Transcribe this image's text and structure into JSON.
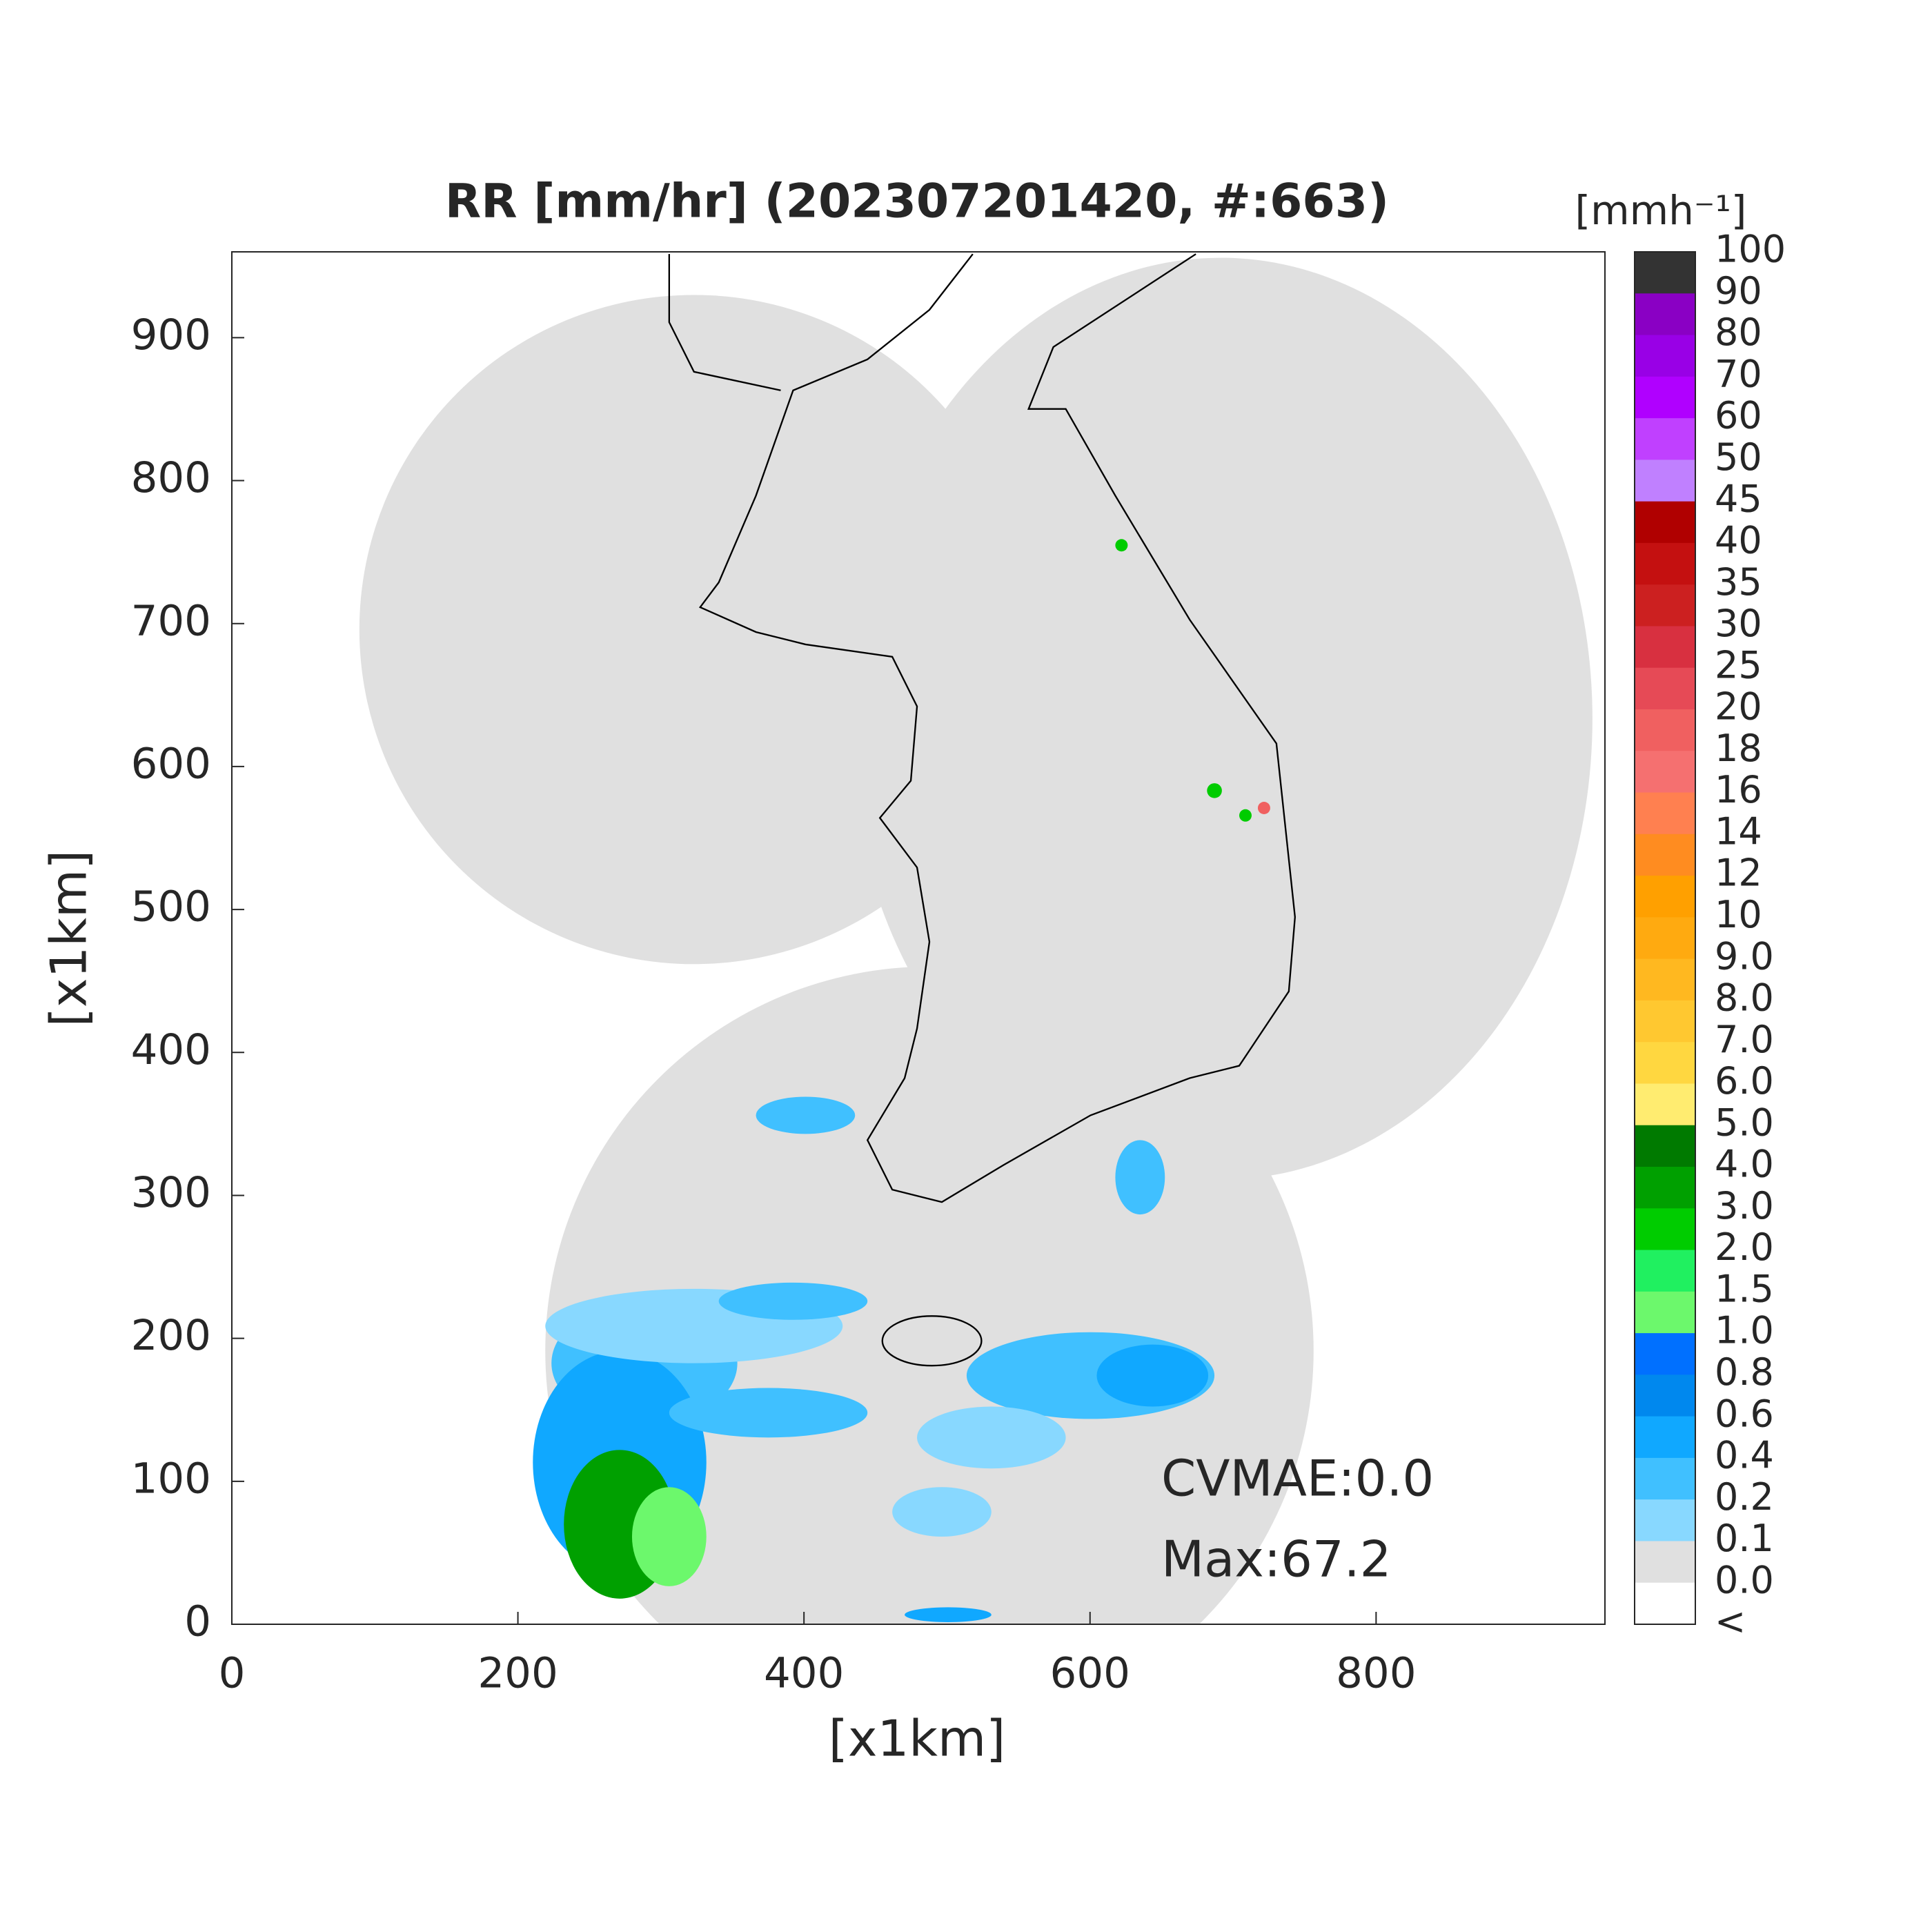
{
  "chart_data": {
    "type": "map",
    "title": "RR [mm/hr] (202307201420, #:663)",
    "xlabel": "[x1km]",
    "ylabel": "[x1km]",
    "xlim": [
      0,
      960
    ],
    "ylim": [
      0,
      960
    ],
    "xticks": [
      0,
      200,
      400,
      600,
      800
    ],
    "yticks": [
      0,
      100,
      200,
      300,
      400,
      500,
      600,
      700,
      800,
      900
    ],
    "annotations": [
      "CVMAE:0.0",
      "Max:67.2"
    ],
    "colorbar": {
      "title": "[mmh⁻¹]",
      "labels": [
        "100",
        "90",
        "80",
        "70",
        "60",
        "50",
        "45",
        "40",
        "35",
        "30",
        "25",
        "20",
        "18",
        "16",
        "14",
        "12",
        "10",
        "9.0",
        "8.0",
        "7.0",
        "6.0",
        "5.0",
        "4.0",
        "3.0",
        "2.0",
        "1.5",
        "1.0",
        "0.8",
        "0.6",
        "0.4",
        "0.2",
        "0.1",
        "0.0",
        "<"
      ],
      "colors": [
        "#333333",
        "#8a00c4",
        "#9900e6",
        "#b000ff",
        "#c040ff",
        "#c080ff",
        "#b00000",
        "#c41010",
        "#cc2020",
        "#d83040",
        "#e64a56",
        "#f06060",
        "#f57070",
        "#ff8050",
        "#ff8c20",
        "#ffa000",
        "#ffaa10",
        "#ffb820",
        "#ffc830",
        "#ffd740",
        "#ffec70",
        "#007a00",
        "#00a000",
        "#00cc00",
        "#20f060",
        "#6cf86c",
        "#0070ff",
        "#0088ee",
        "#10a8ff",
        "#40c0ff",
        "#88d8ff",
        "#e0e0e0",
        "#ffffff"
      ]
    }
  }
}
